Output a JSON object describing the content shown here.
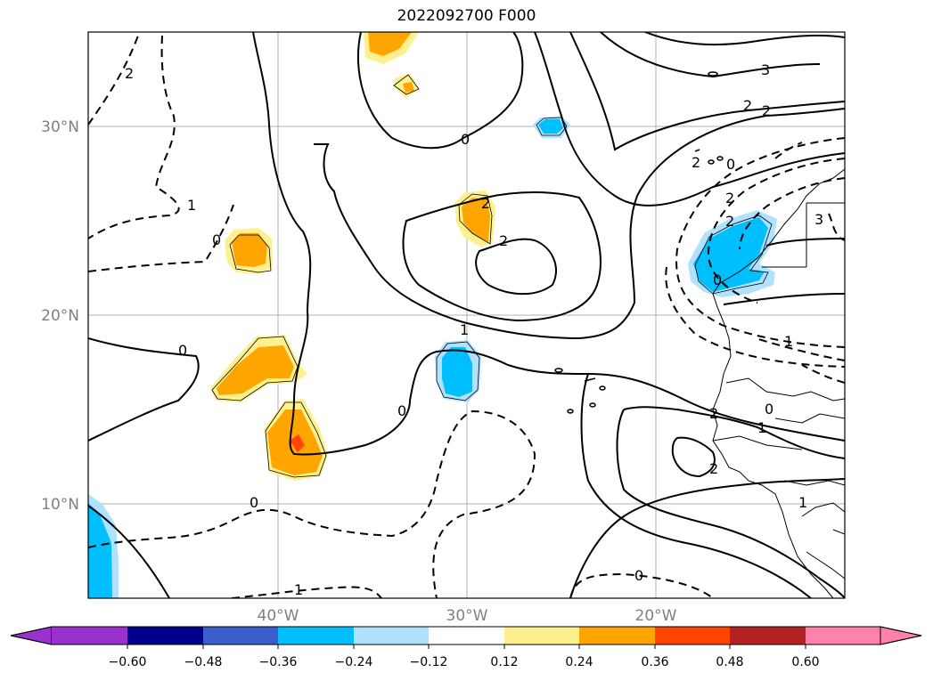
{
  "title": "2022092700 F000",
  "map": {
    "lat_labels": [
      "30°N",
      "20°N",
      "10°N"
    ],
    "lon_labels": [
      "40°W",
      "30°W",
      "20°W"
    ],
    "contour_labels": [
      "2",
      "1",
      "0",
      "2",
      "0",
      "3",
      "2",
      "2",
      "0",
      "2",
      "2",
      "1",
      "2",
      "2",
      "0",
      "1",
      "0",
      "0",
      "1",
      "0",
      "2",
      "3",
      "1",
      "0",
      "1",
      "0",
      "2"
    ]
  },
  "colorbar": {
    "ticks": [
      "−0.60",
      "−0.48",
      "−0.36",
      "−0.24",
      "−0.12",
      "0.12",
      "0.24",
      "0.36",
      "0.48",
      "0.60"
    ],
    "colors": [
      "#9932cc",
      "#00008b",
      "#3a5fcd",
      "#00bfff",
      "#b0e2ff",
      "#ffffff",
      "#fff08f",
      "#ffa500",
      "#ff4500",
      "#b22222",
      "#ff82ab"
    ]
  }
}
